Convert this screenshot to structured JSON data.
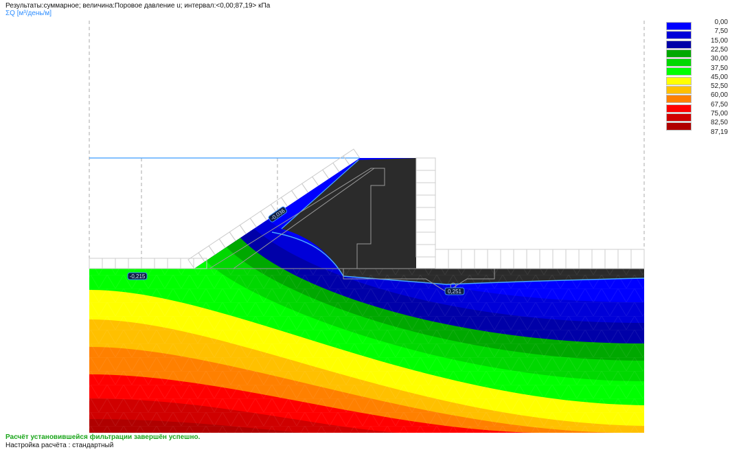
{
  "header": {
    "results_line": "Результаты:суммарное; величина:Поровое давление u; интервал:<0,00;87,19> кПа",
    "flow_line": "ΣQ [м³/день/м]"
  },
  "legend": {
    "values": [
      "0,00",
      "7,50",
      "15,00",
      "22,50",
      "30,00",
      "37,50",
      "45,00",
      "52,50",
      "60,00",
      "67,50",
      "75,00",
      "82,50",
      "87,19"
    ],
    "colors": [
      "#0000ff",
      "#0000d8",
      "#0000a8",
      "#00a800",
      "#00d800",
      "#00ff00",
      "#ffff00",
      "#ffc000",
      "#ff8000",
      "#ff0000",
      "#d00000",
      "#b00000"
    ]
  },
  "flow_labels": [
    "-0,215",
    "-0,036",
    "0,251"
  ],
  "footer": {
    "status": "Расчёт установившейся фильтрации завершён успешно.",
    "settings": "Настройка расчёта : стандартный"
  }
}
